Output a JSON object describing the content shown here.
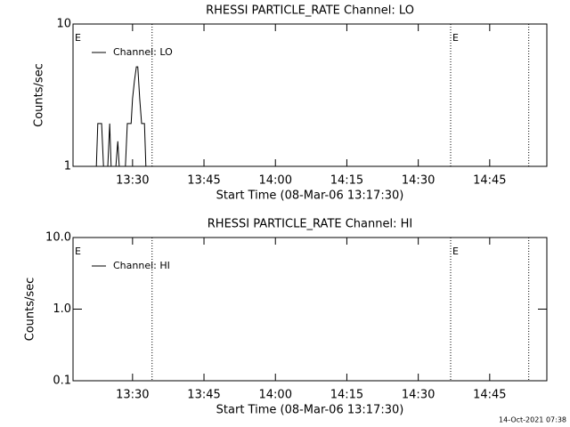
{
  "chart_data": [
    {
      "type": "line",
      "title": "RHESSI PARTICLE_RATE Channel: LO",
      "y_label": "Counts/sec",
      "x_label": "Start Time (08-Mar-06 13:17:30)",
      "ylog": true,
      "ylim": [
        1,
        10
      ],
      "yticks": [
        1,
        10
      ],
      "xlim": [
        797.5,
        897.0
      ],
      "xticks": [
        {
          "value": 810,
          "label": "13:30"
        },
        {
          "value": 825,
          "label": "13:45"
        },
        {
          "value": 840,
          "label": "14:00"
        },
        {
          "value": 855,
          "label": "14:15"
        },
        {
          "value": 870,
          "label": "14:30"
        },
        {
          "value": 885,
          "label": "14:45"
        }
      ],
      "vlines": [
        814.1,
        876.8,
        893.2
      ],
      "annotations": [
        {
          "text": "E",
          "x": 797.5
        },
        {
          "text": "E",
          "x": 876.8
        }
      ],
      "legend": "top-left",
      "series": [
        {
          "name": "Channel: LO",
          "color": "#000000",
          "x": [
            802.4,
            802.7,
            803.5,
            803.9,
            804.8,
            805.2,
            805.5,
            806.5,
            806.9,
            807.2,
            808.5,
            808.9,
            809.7,
            810.0,
            810.4,
            810.8,
            811.1,
            811.5,
            811.9,
            812.5,
            812.8
          ],
          "values": [
            1,
            2,
            2,
            1,
            1,
            2,
            1,
            1,
            1.5,
            1,
            1,
            2,
            2,
            3,
            4,
            5,
            5,
            3,
            2,
            2,
            1
          ]
        }
      ]
    },
    {
      "type": "line",
      "title": "RHESSI PARTICLE_RATE Channel: HI",
      "y_label": "Counts/sec",
      "x_label": "Start Time (08-Mar-06 13:17:30)",
      "ylog": true,
      "ylim": [
        0.1,
        10
      ],
      "yticks": [
        0.1,
        {
          "value": 1,
          "label": "1.0"
        },
        {
          "value": 10,
          "label": "10.0"
        }
      ],
      "xlim": [
        797.5,
        897.0
      ],
      "xticks": [
        {
          "value": 810,
          "label": "13:30"
        },
        {
          "value": 825,
          "label": "13:45"
        },
        {
          "value": 840,
          "label": "14:00"
        },
        {
          "value": 855,
          "label": "14:15"
        },
        {
          "value": 870,
          "label": "14:30"
        },
        {
          "value": 885,
          "label": "14:45"
        }
      ],
      "vlines": [
        814.1,
        876.8,
        893.2
      ],
      "annotations": [
        {
          "text": "E",
          "x": 797.5
        },
        {
          "text": "E",
          "x": 876.8
        }
      ],
      "legend": "top-left",
      "series": [
        {
          "name": "Channel: HI",
          "color": "#000000",
          "x": [],
          "values": []
        }
      ]
    }
  ],
  "footer": "14-Oct-2021 07:38"
}
